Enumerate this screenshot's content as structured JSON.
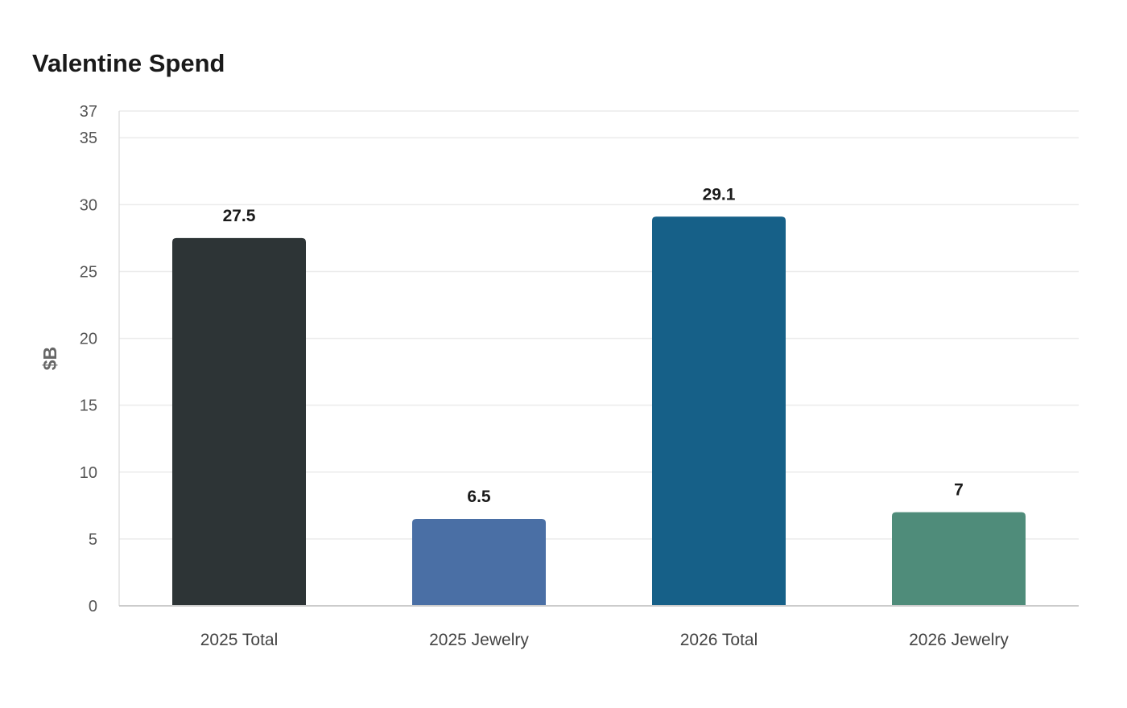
{
  "chart_data": {
    "type": "bar",
    "title": "Valentine Spend",
    "xlabel": "",
    "ylabel": "$B",
    "categories": [
      "2025 Total",
      "2025 Jewelry",
      "2026 Total",
      "2026 Jewelry"
    ],
    "values": [
      27.5,
      6.5,
      29.1,
      7
    ],
    "colors": [
      "#2d3436",
      "#4a6fa5",
      "#166088",
      "#4f8c7a"
    ],
    "ylim": [
      0,
      37
    ],
    "yticks": [
      0,
      5,
      10,
      15,
      20,
      25,
      30,
      35,
      37
    ],
    "grid": true,
    "legend": "none"
  }
}
